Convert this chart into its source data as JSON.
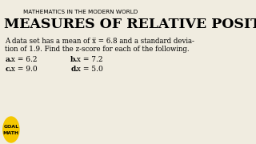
{
  "bg_color": "#f0ece0",
  "top_label": "MATHEMATICS IN THE MODERN WORLD",
  "main_title": "MEASURES OF RELATIVE POSITION",
  "body_line1": "A data set has a mean of x̅ = 6.8 and a standard devia-",
  "body_line2": "tion of 1.9. Find the z-score for each of the following.",
  "item_a_label": "a.",
  "item_a_text": " x = 6.2",
  "item_b_label": "b.",
  "item_b_text": " x = 7.2",
  "item_c_label": "c.",
  "item_c_text": " x = 9.0",
  "item_d_label": "d.",
  "item_d_text": " x = 5.0",
  "badge_bg": "#f5c800",
  "badge_text1": "GOAL",
  "badge_text2": "MATH"
}
